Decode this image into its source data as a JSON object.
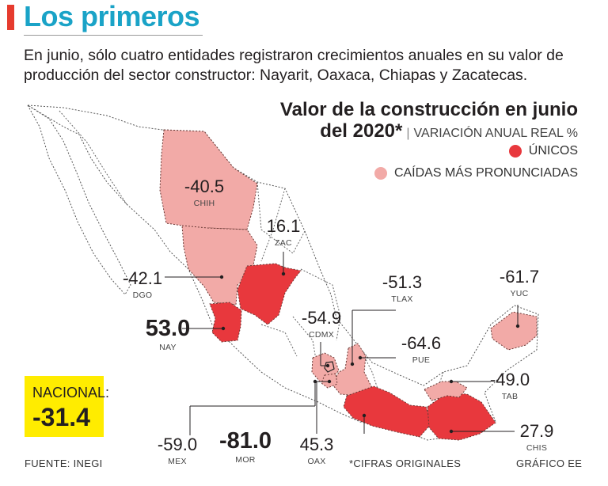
{
  "header": {
    "title": "Los primeros",
    "subtitle": "En junio, sólo cuatro entidades registraron crecimientos anuales en su valor de producción del sector constructor: Nayarit, Oaxaca, Chiapas y Zacatecas."
  },
  "chart": {
    "title_line1": "Valor de la construcción en junio",
    "title_line2": "del 2020*",
    "subtitle": "VARIACIÓN ANUAL REAL %"
  },
  "legend": {
    "unicos": "ÚNICOS",
    "caidas": "CAÍDAS MÁS PRONUNCIADAS"
  },
  "colors": {
    "title": "#1aa3c7",
    "unicos": "#e8383d",
    "caidas": "#f2aaa7",
    "base": "#ffffff",
    "nacional_bg": "#ffec00"
  },
  "states": [
    {
      "abbr": "CHIH",
      "value": "-40.5",
      "category": "caidas"
    },
    {
      "abbr": "DGO",
      "value": "-42.1",
      "category": "caidas"
    },
    {
      "abbr": "ZAC",
      "value": "16.1",
      "category": "unicos"
    },
    {
      "abbr": "NAY",
      "value": "53.0",
      "category": "unicos"
    },
    {
      "abbr": "TLAX",
      "value": "-51.3",
      "category": "caidas"
    },
    {
      "abbr": "YUC",
      "value": "-61.7",
      "category": "caidas"
    },
    {
      "abbr": "CDMX",
      "value": "-54.9",
      "category": "caidas"
    },
    {
      "abbr": "PUE",
      "value": "-64.6",
      "category": "caidas"
    },
    {
      "abbr": "TAB",
      "value": "-49.0",
      "category": "caidas"
    },
    {
      "abbr": "CHIS",
      "value": "27.9",
      "category": "unicos"
    },
    {
      "abbr": "OAX",
      "value": "45.3",
      "category": "unicos"
    },
    {
      "abbr": "MOR",
      "value": "-81.0",
      "category": "caidas"
    },
    {
      "abbr": "MEX",
      "value": "-59.0",
      "category": "caidas"
    }
  ],
  "nacional": {
    "label": "NACIONAL:",
    "value": "-31.4"
  },
  "footer": {
    "source": "FUENTE: INEGI",
    "note": "*CIFRAS ORIGINALES",
    "credit": "GRÁFICO EE"
  }
}
